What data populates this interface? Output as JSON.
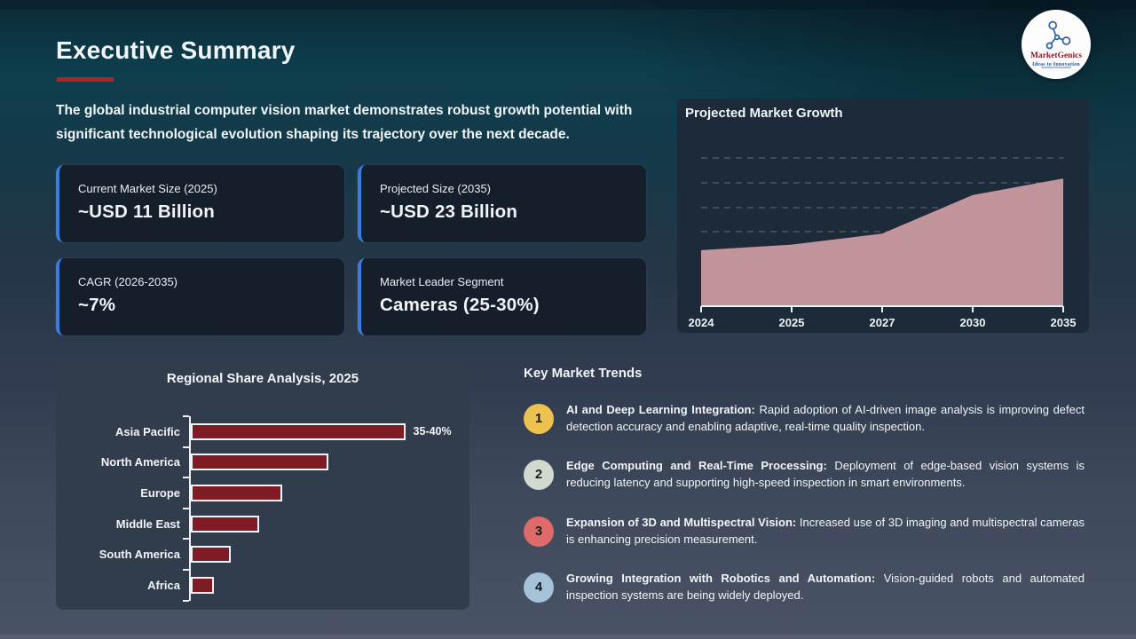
{
  "page": {
    "title": "Executive Summary",
    "intro": "The global industrial computer vision market demonstrates robust growth potential with significant technological evolution shaping its trajectory over the next decade."
  },
  "logo": {
    "name": "MarketGenics",
    "tagline": "Ideas to Innovation",
    "accent_red": "#8e1c2b",
    "accent_blue": "#2c5ca8"
  },
  "stat_cards": [
    {
      "label": "Current Market Size (2025)",
      "value": "~USD 11 Billion"
    },
    {
      "label": "Projected Size (2035)",
      "value": "~USD 23 Billion"
    },
    {
      "label": "CAGR (2026-2035)",
      "value": "~7%"
    },
    {
      "label": "Market Leader Segment",
      "value": "Cameras (25-30%)"
    }
  ],
  "chart_data": [
    {
      "type": "area",
      "title": "Projected Market Growth",
      "x": [
        "2024",
        "2025",
        "2027",
        "2030",
        "2035"
      ],
      "values": [
        10,
        11,
        13,
        20,
        23
      ],
      "ylim": [
        0,
        28
      ],
      "xlabel": "",
      "ylabel": "",
      "grid": "dashed-horizontal",
      "legend": "none",
      "area_color": "#c2959c"
    },
    {
      "type": "bar",
      "orientation": "horizontal",
      "title": "Regional Share Analysis, 2025",
      "categories": [
        "Asia Pacific",
        "North America",
        "Europe",
        "Middle East",
        "South America",
        "Africa"
      ],
      "values": [
        37.5,
        24,
        16,
        12,
        7,
        4
      ],
      "data_labels": [
        "35-40%",
        "",
        "",
        "",
        "",
        ""
      ],
      "xlim": [
        0,
        40
      ],
      "xlabel": "",
      "ylabel": "",
      "grid": "off",
      "legend": "none",
      "bar_color": "#7f1b25"
    }
  ],
  "trends": {
    "title": "Key Market Trends",
    "items": [
      {
        "number": "1",
        "color": "#eec24f",
        "heading": "AI and Deep Learning Integration:",
        "body": "Rapid adoption of AI-driven image analysis is improving defect detection accuracy and enabling adaptive, real-time quality inspection."
      },
      {
        "number": "2",
        "color": "#d2dacf",
        "heading": "Edge Computing and Real-Time Processing:",
        "body": "Deployment of edge-based vision systems is reducing latency and supporting high-speed inspection in smart environments."
      },
      {
        "number": "3",
        "color": "#df6a6a",
        "heading": "Expansion of 3D and Multispectral Vision:",
        "body": "Increased use of 3D imaging and multispectral cameras is enhancing precision measurement."
      },
      {
        "number": "4",
        "color": "#a5c2d8",
        "heading": "Growing Integration with Robotics and Automation:",
        "body": "Vision-guided robots and automated inspection systems are being widely deployed."
      }
    ]
  },
  "colors": {
    "title_underline": "#b12420",
    "card_accent": "#3b7ce0",
    "growth_panel_bg": "#1c2a39",
    "regional_panel_bg": "#313c4c"
  }
}
